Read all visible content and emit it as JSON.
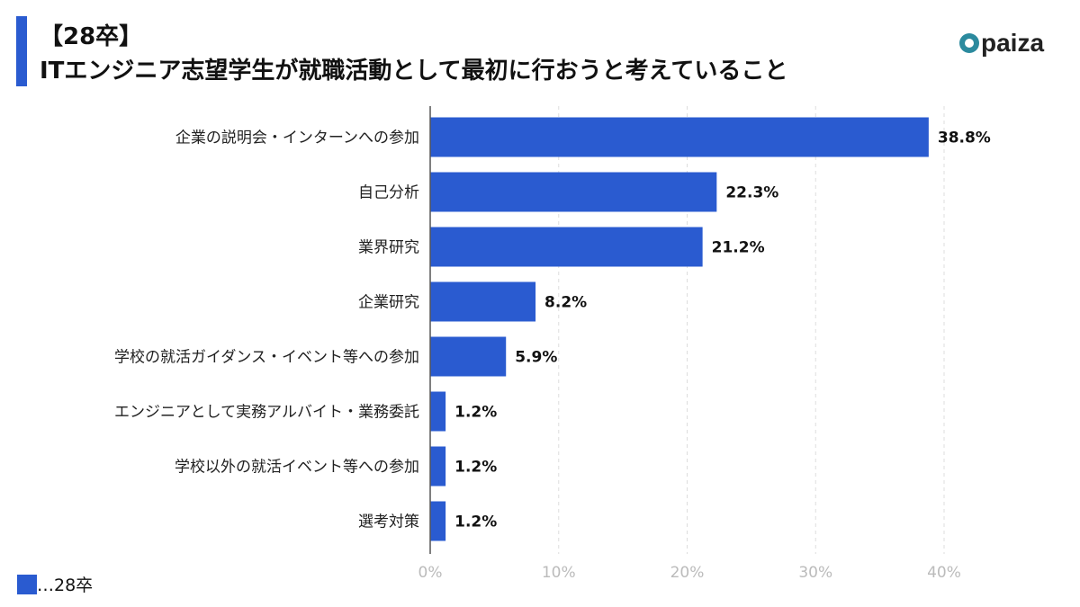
{
  "header": {
    "line1": "【28卒】",
    "line2": "ITエンジニア志望学生が就職活動として最初に行おうと考えていること"
  },
  "logo": {
    "text": "paiza",
    "color": "#2b8a9e"
  },
  "chart_data": {
    "type": "bar",
    "orientation": "horizontal",
    "categories": [
      "企業の説明会・インターンへの参加",
      "自己分析",
      "業界研究",
      "企業研究",
      "学校の就活ガイダンス・イベント等への参加",
      "エンジニアとして実務アルバイト・業務委託",
      "学校以外の就活イベント等への参加",
      "選考対策"
    ],
    "series": [
      {
        "name": "28卒",
        "values": [
          38.8,
          22.3,
          21.2,
          8.2,
          5.9,
          1.2,
          1.2,
          1.2
        ],
        "color": "#2a5bd0"
      }
    ],
    "data_labels": [
      "38.8%",
      "22.3%",
      "21.2%",
      "8.2%",
      "5.9%",
      "1.2%",
      "1.2%",
      "1.2%"
    ],
    "xlim": [
      0,
      40
    ],
    "xticks": [
      "0%",
      "10%",
      "20%",
      "30%",
      "40%"
    ],
    "grid": "vertical dashed",
    "legend": {
      "label": "…28卒",
      "placement": "bottom-left"
    }
  }
}
